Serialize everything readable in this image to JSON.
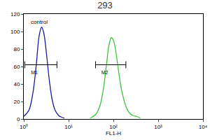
{
  "chart_data": {
    "type": "line",
    "title": "293",
    "x_label": "FL1-H",
    "log": "x",
    "xlim": [
      1,
      10000
    ],
    "xticks": [
      {
        "value": 1,
        "label": "10⁰"
      },
      {
        "value": 10,
        "label": "10¹"
      },
      {
        "value": 100,
        "label": "10²"
      },
      {
        "value": 1000,
        "label": "10³"
      },
      {
        "value": 10000,
        "label": "10⁴"
      }
    ],
    "ylim": [
      0,
      120
    ],
    "yticks": [
      0,
      20,
      40,
      60,
      80,
      100,
      120
    ],
    "series": [
      {
        "name": "control",
        "color": "#1c1c9c",
        "x": [
          1,
          1.3,
          1.6,
          1.9,
          2.2,
          2.5,
          2.8,
          3.2,
          3.7,
          4.3,
          5,
          6,
          7,
          8
        ],
        "values": [
          3,
          10,
          30,
          62,
          95,
          105,
          98,
          75,
          45,
          22,
          10,
          4,
          2,
          1
        ]
      },
      {
        "color": "#3ec43e",
        "x": [
          30,
          40,
          50,
          60,
          70,
          80,
          90,
          100,
          115,
          130,
          150,
          180,
          220,
          270,
          330,
          400
        ],
        "values": [
          1,
          5,
          15,
          35,
          62,
          85,
          93,
          90,
          75,
          55,
          35,
          18,
          8,
          4,
          3,
          1
        ]
      }
    ],
    "gates": [
      {
        "label": "M1",
        "x": [
          1.05,
          5.5
        ],
        "y": 62
      },
      {
        "label": "M2",
        "x": [
          40,
          190
        ],
        "y": 62
      }
    ]
  }
}
